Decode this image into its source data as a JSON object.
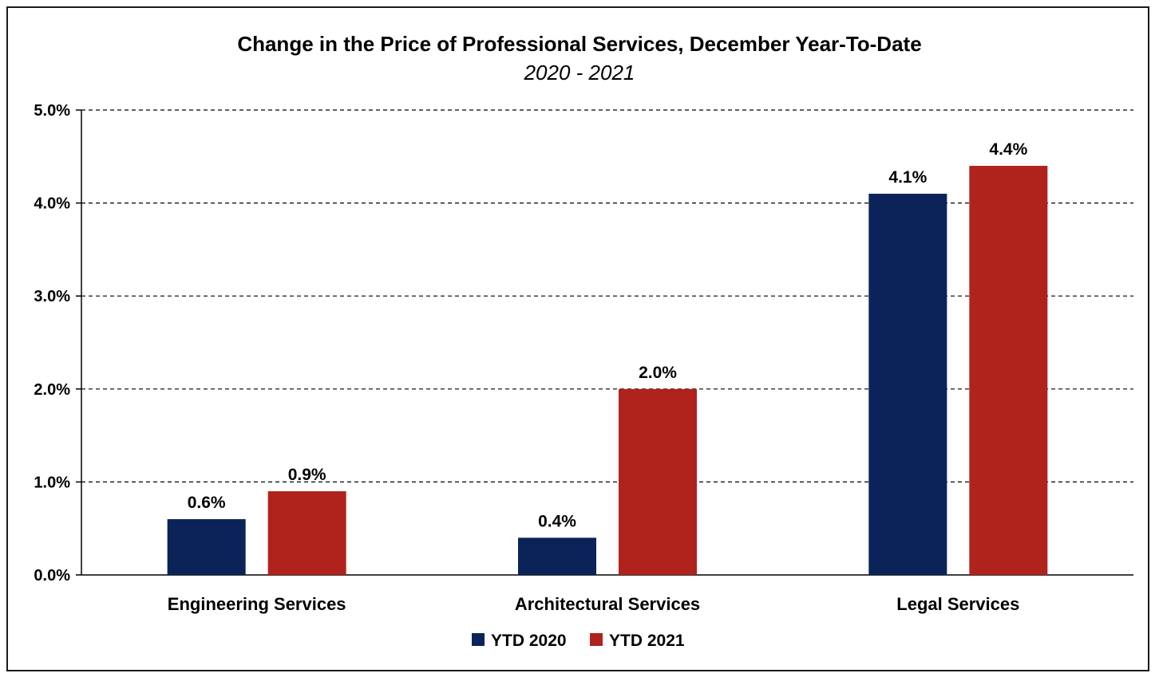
{
  "chart_data": {
    "type": "bar",
    "title": "Change in the Price of Professional Services, December Year-To-Date",
    "subtitle": "2020 - 2021",
    "categories": [
      "Engineering Services",
      "Architectural Services",
      "Legal Services"
    ],
    "series": [
      {
        "name": "YTD 2020",
        "color": "#0b2358",
        "values": [
          0.6,
          0.4,
          4.1
        ],
        "labels": [
          "0.6%",
          "0.4%",
          "4.1%"
        ]
      },
      {
        "name": "YTD 2021",
        "color": "#b0231c",
        "values": [
          0.9,
          2.0,
          4.4
        ],
        "labels": [
          "0.9%",
          "2.0%",
          "4.4%"
        ]
      }
    ],
    "ylim": [
      0,
      5
    ],
    "yticks": [
      0,
      1,
      2,
      3,
      4,
      5
    ],
    "ytick_labels": [
      "0.0%",
      "1.0%",
      "2.0%",
      "3.0%",
      "4.0%",
      "5.0%"
    ],
    "xlabel": "",
    "ylabel": "",
    "grid": "dashed horizontal",
    "legend_position": "bottom-center"
  }
}
